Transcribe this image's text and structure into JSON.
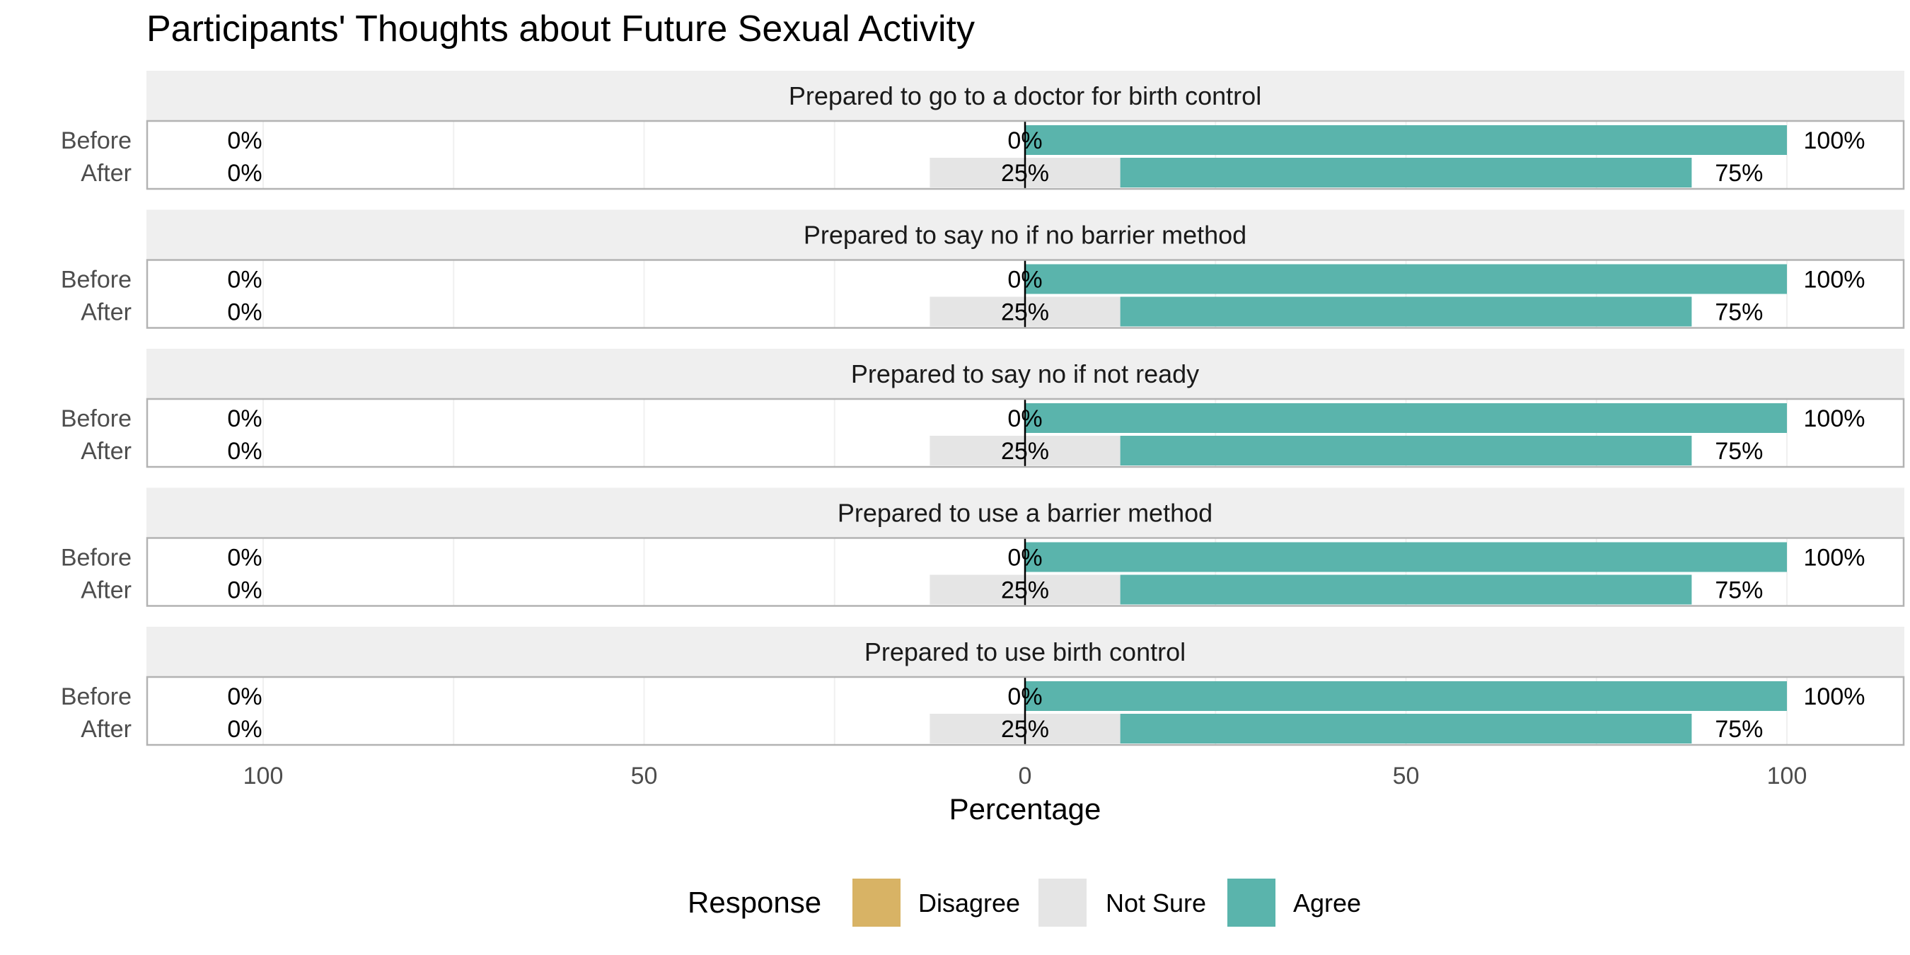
{
  "chart_data": {
    "type": "bar",
    "title": "Participants' Thoughts about Future Sexual Activity",
    "xlabel": "Percentage",
    "ylabel": "",
    "xlim": [
      -100,
      100
    ],
    "x_ticks": [
      -100,
      -50,
      0,
      50,
      100
    ],
    "x_tick_labels": [
      "100",
      "50",
      "0",
      "50",
      "100"
    ],
    "rows": [
      "Before",
      "After"
    ],
    "legend": {
      "title": "Response",
      "placement": "bottom",
      "entries": [
        {
          "name": "Disagree",
          "color": "#D8B365"
        },
        {
          "name": "Not Sure",
          "color": "#E5E5E5"
        },
        {
          "name": "Agree",
          "color": "#5AB4AC"
        }
      ]
    },
    "panels": [
      {
        "title": "Prepared to go to a doctor for birth control",
        "bars": [
          {
            "row": "Before",
            "disagree": 0,
            "not_sure": 0,
            "agree": 100,
            "label_disagree": "0%",
            "label_not_sure": "0%",
            "label_agree": "100%"
          },
          {
            "row": "After",
            "disagree": 0,
            "not_sure": 25,
            "agree": 75,
            "label_disagree": "0%",
            "label_not_sure": "25%",
            "label_agree": "75%"
          }
        ]
      },
      {
        "title": "Prepared to say no if no barrier method",
        "bars": [
          {
            "row": "Before",
            "disagree": 0,
            "not_sure": 0,
            "agree": 100,
            "label_disagree": "0%",
            "label_not_sure": "0%",
            "label_agree": "100%"
          },
          {
            "row": "After",
            "disagree": 0,
            "not_sure": 25,
            "agree": 75,
            "label_disagree": "0%",
            "label_not_sure": "25%",
            "label_agree": "75%"
          }
        ]
      },
      {
        "title": "Prepared to say no if not ready",
        "bars": [
          {
            "row": "Before",
            "disagree": 0,
            "not_sure": 0,
            "agree": 100,
            "label_disagree": "0%",
            "label_not_sure": "0%",
            "label_agree": "100%"
          },
          {
            "row": "After",
            "disagree": 0,
            "not_sure": 25,
            "agree": 75,
            "label_disagree": "0%",
            "label_not_sure": "25%",
            "label_agree": "75%"
          }
        ]
      },
      {
        "title": "Prepared to use a barrier method",
        "bars": [
          {
            "row": "Before",
            "disagree": 0,
            "not_sure": 0,
            "agree": 100,
            "label_disagree": "0%",
            "label_not_sure": "0%",
            "label_agree": "100%"
          },
          {
            "row": "After",
            "disagree": 0,
            "not_sure": 25,
            "agree": 75,
            "label_disagree": "0%",
            "label_not_sure": "25%",
            "label_agree": "75%"
          }
        ]
      },
      {
        "title": "Prepared to use birth control",
        "bars": [
          {
            "row": "Before",
            "disagree": 0,
            "not_sure": 0,
            "agree": 100,
            "label_disagree": "0%",
            "label_not_sure": "0%",
            "label_agree": "100%"
          },
          {
            "row": "After",
            "disagree": 0,
            "not_sure": 25,
            "agree": 75,
            "label_disagree": "0%",
            "label_not_sure": "25%",
            "label_agree": "75%"
          }
        ]
      }
    ]
  }
}
